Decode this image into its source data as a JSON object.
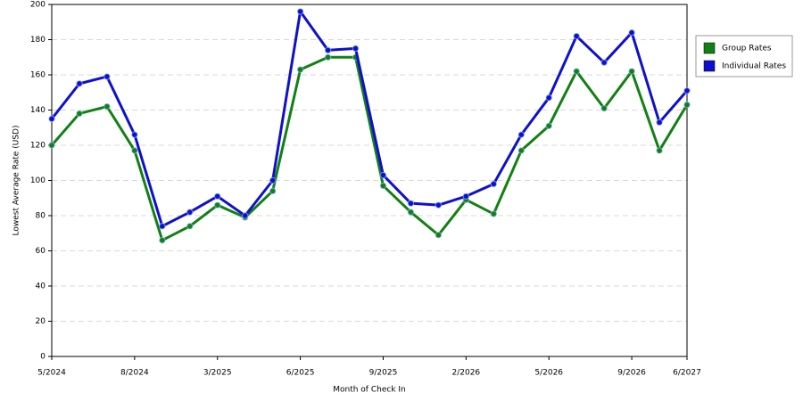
{
  "chart_data": {
    "type": "line",
    "x_label": "Month of Check In",
    "y_label": "Lowest Average Rate (USD)",
    "categories": [
      "5/2024",
      null,
      null,
      "8/2024",
      null,
      null,
      "3/2025",
      null,
      null,
      "6/2025",
      null,
      null,
      "9/2025",
      null,
      null,
      "2/2026",
      null,
      null,
      "5/2026",
      null,
      null,
      "9/2026",
      null,
      "6/2027"
    ],
    "series": [
      {
        "name": "Group Rates",
        "color": "#138013",
        "values": [
          120,
          138,
          142,
          117,
          66,
          74,
          86,
          79,
          94,
          163,
          170,
          170,
          97,
          82,
          69,
          89,
          81,
          117,
          131,
          162,
          141,
          162,
          117,
          143
        ]
      },
      {
        "name": "Individual Rates",
        "color": "#1010cc",
        "values": [
          135,
          155,
          159,
          126,
          74,
          82,
          91,
          80,
          100,
          196,
          174,
          175,
          103,
          87,
          86,
          91,
          98,
          126,
          147,
          182,
          167,
          184,
          133,
          151
        ]
      }
    ],
    "ylim": [
      0,
      200
    ],
    "yticks": [
      0,
      20,
      40,
      60,
      80,
      100,
      120,
      140,
      160,
      180,
      200
    ],
    "grid": true,
    "legend": "right"
  }
}
